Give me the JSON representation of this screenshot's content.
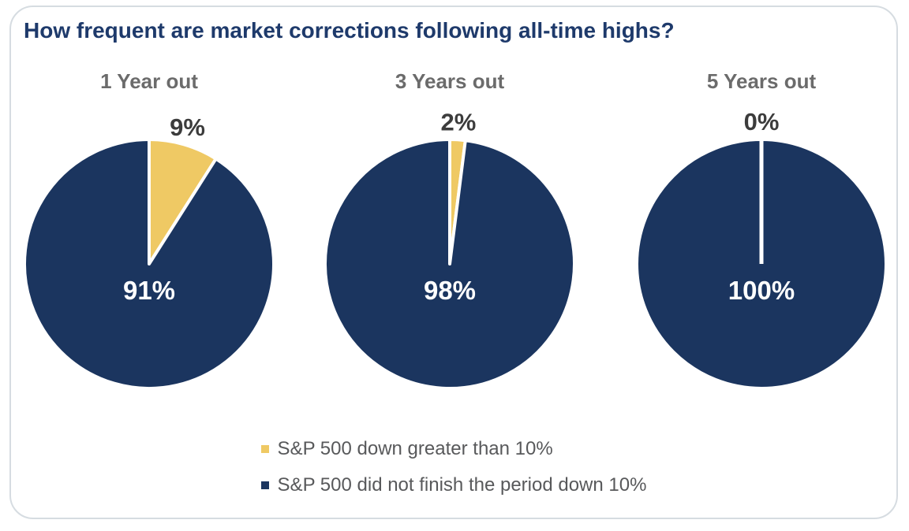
{
  "title": "How frequent are market corrections following all-time highs?",
  "colors": {
    "accent_gold": "#EFC964",
    "accent_navy": "#1B355F",
    "title_text": "#1E3A6B",
    "chart_title_text": "#6B6B6B",
    "outside_label_text": "#3C3C3C",
    "inside_label_text": "#FFFFFF",
    "legend_text": "#58595B",
    "card_border": "#D6DCE1"
  },
  "chart_data": [
    {
      "type": "pie",
      "title": "1 Year out",
      "slices": [
        {
          "label": "S&P 500 down greater than 10%",
          "value": 9,
          "display": "9%",
          "color": "#EFC964"
        },
        {
          "label": "S&P 500 did not finish the period down 10%",
          "value": 91,
          "display": "91%",
          "color": "#1B355F"
        }
      ]
    },
    {
      "type": "pie",
      "title": "3 Years out",
      "slices": [
        {
          "label": "S&P 500 down greater than 10%",
          "value": 2,
          "display": "2%",
          "color": "#EFC964"
        },
        {
          "label": "S&P 500 did not finish the period down 10%",
          "value": 98,
          "display": "98%",
          "color": "#1B355F"
        }
      ]
    },
    {
      "type": "pie",
      "title": "5 Years out",
      "slices": [
        {
          "label": "S&P 500 down greater than 10%",
          "value": 0,
          "display": "0%",
          "color": "#EFC964"
        },
        {
          "label": "S&P 500 did not finish the period down 10%",
          "value": 100,
          "display": "100%",
          "color": "#1B355F"
        }
      ]
    }
  ],
  "legend": {
    "items": [
      {
        "label": "S&P 500 down greater than 10%",
        "color": "#EFC964"
      },
      {
        "label": "S&P 500 did not finish the period down 10%",
        "color": "#1B355F"
      }
    ]
  }
}
